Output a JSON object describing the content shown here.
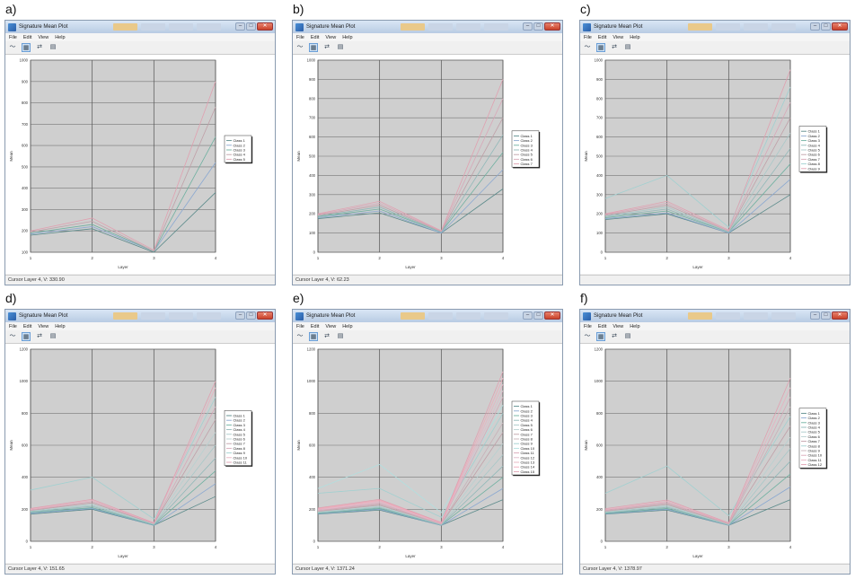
{
  "window_title": "Signature Mean Plot",
  "menu": [
    "File",
    "Edit",
    "View",
    "Help"
  ],
  "toolbar": [
    "line-chart-icon",
    "histogram-icon",
    "swap-icon",
    "print-icon"
  ],
  "panels": [
    {
      "label": "a)",
      "status": "Cursor Layer 4, V: 330.90",
      "chart_data": {
        "type": "line",
        "x": [
          1,
          2,
          3,
          4
        ],
        "xlabel": "Layer",
        "ylabel": "Mean",
        "ylim": [
          100,
          1000
        ],
        "yticks": [
          100,
          200,
          300,
          400,
          500,
          600,
          700,
          800,
          900,
          1000
        ],
        "xticks": [
          1,
          2,
          3,
          4
        ],
        "legend_position": "right",
        "series": [
          {
            "name": "Class 1",
            "color": "#5a8a8a",
            "values": [
              180,
              210,
              100,
              380
            ]
          },
          {
            "name": "Class 2",
            "color": "#8aa8d0",
            "values": [
              185,
              220,
              105,
              520
            ]
          },
          {
            "name": "Class 3",
            "color": "#6fb0a0",
            "values": [
              190,
              230,
              105,
              640
            ]
          },
          {
            "name": "Class 4",
            "color": "#c0a0a8",
            "values": [
              195,
              245,
              105,
              780
            ]
          },
          {
            "name": "Class 5",
            "color": "#e0a0b0",
            "values": [
              200,
              260,
              110,
              900
            ]
          }
        ]
      }
    },
    {
      "label": "b)",
      "status": "Cursor Layer 4, V: 62.23",
      "chart_data": {
        "type": "line",
        "x": [
          1,
          2,
          3,
          4
        ],
        "xlabel": "Layer",
        "ylabel": "Mean",
        "ylim": [
          0,
          1000
        ],
        "yticks": [
          0,
          100,
          200,
          300,
          400,
          500,
          600,
          700,
          800,
          900,
          1000
        ],
        "xticks": [
          1,
          2,
          3,
          4
        ],
        "legend_position": "right",
        "series": [
          {
            "name": "Class 1",
            "color": "#5a8a8a",
            "values": [
              175,
              205,
              100,
              330
            ]
          },
          {
            "name": "Class 2",
            "color": "#8aa8d0",
            "values": [
              180,
              215,
              100,
              430
            ]
          },
          {
            "name": "Class 3",
            "color": "#6fb0a0",
            "values": [
              185,
              225,
              105,
              520
            ]
          },
          {
            "name": "Class 4",
            "color": "#90b8b8",
            "values": [
              188,
              235,
              105,
              610
            ]
          },
          {
            "name": "Class 5",
            "color": "#c0a0a8",
            "values": [
              192,
              245,
              108,
              700
            ]
          },
          {
            "name": "Class 6",
            "color": "#d8a8b8",
            "values": [
              196,
              255,
              110,
              800
            ]
          },
          {
            "name": "Class 7",
            "color": "#e0a0b0",
            "values": [
              200,
              265,
              112,
              900
            ]
          }
        ]
      }
    },
    {
      "label": "c)",
      "status": "",
      "chart_data": {
        "type": "line",
        "x": [
          1,
          2,
          3,
          4
        ],
        "xlabel": "Layer",
        "ylabel": "Mean",
        "ylim": [
          0,
          1000
        ],
        "yticks": [
          0,
          100,
          200,
          300,
          400,
          500,
          600,
          700,
          800,
          900,
          1000
        ],
        "xticks": [
          1,
          2,
          3,
          4
        ],
        "legend_position": "right",
        "series": [
          {
            "name": "Class 1",
            "color": "#5a8a8a",
            "values": [
              170,
              200,
              100,
              300
            ]
          },
          {
            "name": "Class 2",
            "color": "#8aa8d0",
            "values": [
              175,
              205,
              100,
              380
            ]
          },
          {
            "name": "Class 3",
            "color": "#6fb0a0",
            "values": [
              180,
              215,
              105,
              460
            ]
          },
          {
            "name": "Class 4",
            "color": "#90b8b8",
            "values": [
              185,
              225,
              105,
              540
            ]
          },
          {
            "name": "Class 5",
            "color": "#a8c8c8",
            "values": [
              188,
              235,
              108,
              620
            ]
          },
          {
            "name": "Class 6",
            "color": "#c0a0a8",
            "values": [
              192,
              245,
              110,
              700
            ]
          },
          {
            "name": "Class 7",
            "color": "#d8a8b8",
            "values": [
              196,
              255,
              110,
              780
            ]
          },
          {
            "name": "Class 8",
            "color": "#a0d0d0",
            "values": [
              280,
              400,
              130,
              860
            ]
          },
          {
            "name": "Class 9",
            "color": "#e0a0b0",
            "values": [
              200,
              265,
              115,
              950
            ]
          }
        ]
      }
    },
    {
      "label": "d)",
      "status": "Cursor Layer 4, V: 151.65",
      "chart_data": {
        "type": "line",
        "x": [
          1,
          2,
          3,
          4
        ],
        "xlabel": "Layer",
        "ylabel": "Mean",
        "ylim": [
          0,
          1200
        ],
        "yticks": [
          0,
          200,
          400,
          600,
          800,
          1000,
          1200
        ],
        "xticks": [
          1,
          2,
          3,
          4
        ],
        "legend_position": "right",
        "series": [
          {
            "name": "Class 1",
            "color": "#5a8a8a",
            "values": [
              170,
              200,
              100,
              280
            ]
          },
          {
            "name": "Class 2",
            "color": "#8aa8d0",
            "values": [
              175,
              205,
              100,
              360
            ]
          },
          {
            "name": "Class 3",
            "color": "#6fb0a0",
            "values": [
              180,
              210,
              102,
              440
            ]
          },
          {
            "name": "Class 4",
            "color": "#90b8b8",
            "values": [
              184,
              218,
              104,
              520
            ]
          },
          {
            "name": "Class 5",
            "color": "#a8c8c8",
            "values": [
              188,
              225,
              106,
              600
            ]
          },
          {
            "name": "Class 6",
            "color": "#b8d0d0",
            "values": [
              190,
              232,
              108,
              680
            ]
          },
          {
            "name": "Class 7",
            "color": "#c0a0a8",
            "values": [
              193,
              240,
              110,
              760
            ]
          },
          {
            "name": "Class 8",
            "color": "#d8a8b8",
            "values": [
              196,
              248,
              112,
              840
            ]
          },
          {
            "name": "Class 9",
            "color": "#a0d0d0",
            "values": [
              320,
              400,
              140,
              900
            ]
          },
          {
            "name": "Class 10",
            "color": "#e8b0c0",
            "values": [
              200,
              255,
              114,
              960
            ]
          },
          {
            "name": "Class 11",
            "color": "#e0a0b0",
            "values": [
              205,
              262,
              116,
              1000
            ]
          }
        ]
      }
    },
    {
      "label": "e)",
      "status": "Cursor Layer 4, V: 1371.24",
      "chart_data": {
        "type": "line",
        "x": [
          1,
          2,
          3,
          4
        ],
        "xlabel": "Layer",
        "ylabel": "Mean",
        "ylim": [
          0,
          1200
        ],
        "yticks": [
          0,
          200,
          400,
          600,
          800,
          1000,
          1200
        ],
        "xticks": [
          1,
          2,
          3,
          4
        ],
        "legend_position": "right",
        "series": [
          {
            "name": "Class 1",
            "color": "#5a8a8a",
            "values": [
              170,
              195,
              100,
              260
            ]
          },
          {
            "name": "Class 2",
            "color": "#8aa8d0",
            "values": [
              172,
              200,
              100,
              330
            ]
          },
          {
            "name": "Class 3",
            "color": "#6fb0a0",
            "values": [
              175,
              205,
              102,
              400
            ]
          },
          {
            "name": "Class 4",
            "color": "#90b8b8",
            "values": [
              178,
              210,
              103,
              470
            ]
          },
          {
            "name": "Class 5",
            "color": "#a8c8c8",
            "values": [
              181,
              215,
              104,
              540
            ]
          },
          {
            "name": "Class 6",
            "color": "#b8d0d0",
            "values": [
              184,
              220,
              106,
              610
            ]
          },
          {
            "name": "Class 7",
            "color": "#c0a0a8",
            "values": [
              187,
              226,
              107,
              680
            ]
          },
          {
            "name": "Class 8",
            "color": "#c8b0b8",
            "values": [
              190,
              232,
              108,
              740
            ]
          },
          {
            "name": "Class 9",
            "color": "#a0d0d0",
            "values": [
              300,
              330,
              150,
              800
            ]
          },
          {
            "name": "Class 10",
            "color": "#b0e0e0",
            "values": [
              330,
              480,
              180,
              850
            ]
          },
          {
            "name": "Class 11",
            "color": "#d8a8b8",
            "values": [
              193,
              238,
              110,
              900
            ]
          },
          {
            "name": "Class 12",
            "color": "#e0b8c8",
            "values": [
              196,
              244,
              112,
              940
            ]
          },
          {
            "name": "Class 13",
            "color": "#e8b0c0",
            "values": [
              200,
              250,
              114,
              980
            ]
          },
          {
            "name": "Class 14",
            "color": "#f0a8b8",
            "values": [
              204,
              256,
              116,
              1020
            ]
          },
          {
            "name": "Class 15",
            "color": "#e0a0b0",
            "values": [
              208,
              262,
              118,
              1060
            ]
          }
        ]
      }
    },
    {
      "label": "f)",
      "status": "Cursor Layer 4, V: 1378.97",
      "chart_data": {
        "type": "line",
        "x": [
          1,
          2,
          3,
          4
        ],
        "xlabel": "Layer",
        "ylabel": "Mean",
        "ylim": [
          0,
          1200
        ],
        "yticks": [
          0,
          200,
          400,
          600,
          800,
          1000,
          1200
        ],
        "xticks": [
          1,
          2,
          3,
          4
        ],
        "legend_position": "right",
        "series": [
          {
            "name": "Class 1",
            "color": "#5a8a8a",
            "values": [
              170,
              195,
              100,
              260
            ]
          },
          {
            "name": "Class 2",
            "color": "#8aa8d0",
            "values": [
              172,
              200,
              100,
              340
            ]
          },
          {
            "name": "Class 3",
            "color": "#6fb0a0",
            "values": [
              175,
              205,
              102,
              420
            ]
          },
          {
            "name": "Class 4",
            "color": "#90b8b8",
            "values": [
              178,
              212,
              103,
              500
            ]
          },
          {
            "name": "Class 5",
            "color": "#a8c8c8",
            "values": [
              182,
              218,
              105,
              580
            ]
          },
          {
            "name": "Class 6",
            "color": "#b8d0d0",
            "values": [
              185,
              224,
              106,
              650
            ]
          },
          {
            "name": "Class 7",
            "color": "#c0a0a8",
            "values": [
              188,
              230,
              108,
              720
            ]
          },
          {
            "name": "Class 8",
            "color": "#a0d0d0",
            "values": [
              300,
              470,
              160,
              780
            ]
          },
          {
            "name": "Class 9",
            "color": "#c8b0b8",
            "values": [
              191,
              236,
              110,
              840
            ]
          },
          {
            "name": "Class 10",
            "color": "#d8a8b8",
            "values": [
              194,
              242,
              112,
              900
            ]
          },
          {
            "name": "Class 11",
            "color": "#e8b0c0",
            "values": [
              198,
              250,
              114,
              960
            ]
          },
          {
            "name": "Class 12",
            "color": "#e0a0b0",
            "values": [
              204,
              258,
              116,
              1020
            ]
          }
        ]
      }
    }
  ]
}
